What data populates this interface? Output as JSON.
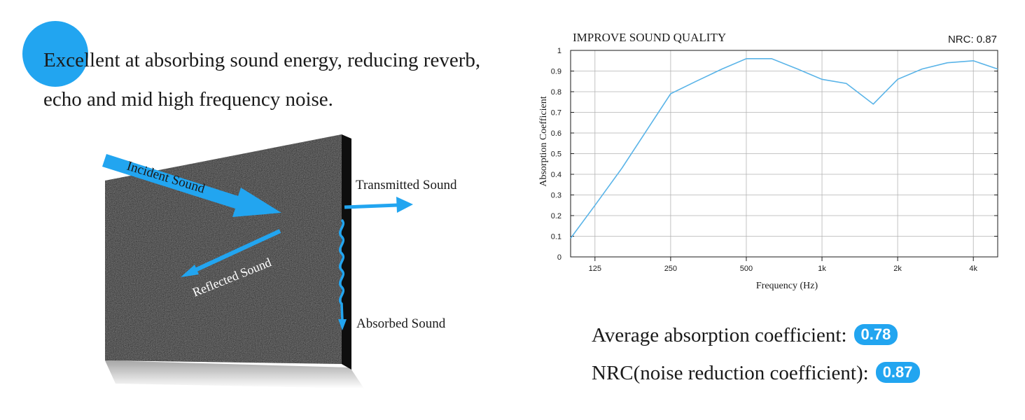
{
  "headline": "Excellent at absorbing sound energy, reducing reverb, echo and mid high frequency noise.",
  "diagram": {
    "incident_label": "Incident Sound",
    "reflected_label": "Reflected Sound",
    "transmitted_label": "Transmitted Sound",
    "absorbed_label": "Absorbed Sound",
    "panel_color": "#222222",
    "arrow_color": "#22a5f0"
  },
  "colors": {
    "accent": "#22a5f0",
    "line": "#5ab4e8",
    "grid": "#b3b3b3"
  },
  "chart_data": {
    "type": "line",
    "title": "IMPROVE SOUND QUALITY",
    "annotation": "NRC: 0.87",
    "xlabel": "Frequency (Hz)",
    "ylabel": "Absorption Coefficient",
    "x_scale": "log",
    "xlim": [
      100,
      5000
    ],
    "ylim": [
      0,
      1
    ],
    "grid": true,
    "x_ticks": [
      {
        "value": 125,
        "label": "125"
      },
      {
        "value": 250,
        "label": "250"
      },
      {
        "value": 500,
        "label": "500"
      },
      {
        "value": 1000,
        "label": "1k"
      },
      {
        "value": 2000,
        "label": "2k"
      },
      {
        "value": 4000,
        "label": "4k"
      }
    ],
    "y_ticks": [
      {
        "value": 0,
        "label": "0"
      },
      {
        "value": 0.1,
        "label": "0.1"
      },
      {
        "value": 0.2,
        "label": "0.2"
      },
      {
        "value": 0.3,
        "label": "0.3"
      },
      {
        "value": 0.4,
        "label": "0.4"
      },
      {
        "value": 0.5,
        "label": "0.5"
      },
      {
        "value": 0.6,
        "label": "0.6"
      },
      {
        "value": 0.7,
        "label": "0.7"
      },
      {
        "value": 0.8,
        "label": "0.8"
      },
      {
        "value": 0.9,
        "label": "0.9"
      },
      {
        "value": 1,
        "label": "1"
      }
    ],
    "x": [
      100,
      125,
      160,
      200,
      250,
      315,
      400,
      500,
      630,
      800,
      1000,
      1250,
      1600,
      2000,
      2500,
      3150,
      4000,
      5000
    ],
    "y": [
      0.09,
      0.25,
      0.43,
      0.61,
      0.79,
      0.85,
      0.91,
      0.96,
      0.96,
      0.91,
      0.86,
      0.84,
      0.74,
      0.86,
      0.91,
      0.94,
      0.95,
      0.91
    ]
  },
  "stats": {
    "avg_label": "Average absorption coefficient:",
    "avg_value": "0.78",
    "nrc_label": "NRC(noise reduction coefficient):",
    "nrc_value": "0.87"
  }
}
